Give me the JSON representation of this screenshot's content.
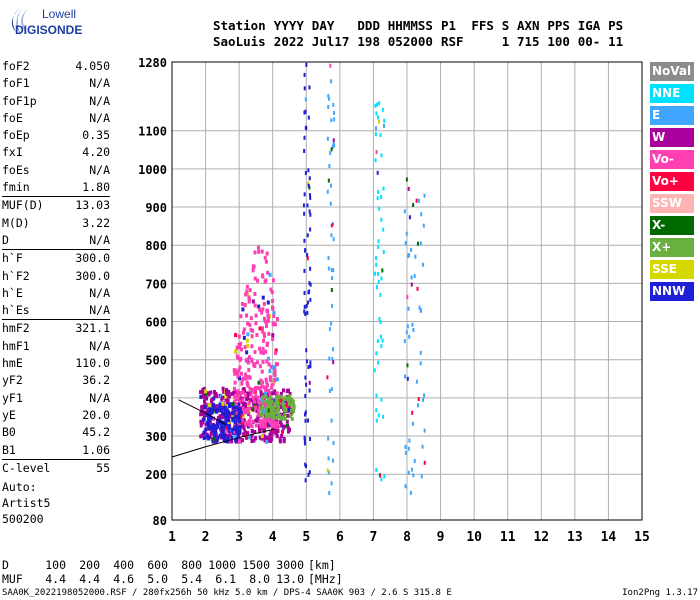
{
  "logo": {
    "line1": "Lowell",
    "line2": "DIGISONDE"
  },
  "header": {
    "row1": [
      "Station",
      "YYYY",
      "DAY",
      "DDD",
      "HHMMSS",
      "P1",
      "FFS",
      "S",
      "AXN",
      "PPS",
      "IGA",
      "PS"
    ],
    "row2": [
      "SaoLuis",
      "2022",
      "Jul17",
      "198",
      "052000",
      "RSF",
      "",
      "1",
      "715",
      "100",
      "00-",
      "11"
    ]
  },
  "params": [
    {
      "name": "foF2",
      "value": "4.050"
    },
    {
      "name": "foF1",
      "value": "N/A"
    },
    {
      "name": "foF1p",
      "value": "N/A"
    },
    {
      "name": "foE",
      "value": "N/A"
    },
    {
      "name": "foEp",
      "value": "0.35"
    },
    {
      "name": "fxI",
      "value": "4.20"
    },
    {
      "name": "foEs",
      "value": "N/A"
    },
    {
      "name": "fmin",
      "value": "1.80"
    },
    {
      "name": "MUF(D)",
      "value": "13.03",
      "sep": true
    },
    {
      "name": "M(D)",
      "value": "3.22"
    },
    {
      "name": "D",
      "value": "N/A"
    },
    {
      "name": "h`F",
      "value": "300.0",
      "sep": true
    },
    {
      "name": "h`F2",
      "value": "300.0"
    },
    {
      "name": "h`E",
      "value": "N/A"
    },
    {
      "name": "h`Es",
      "value": "N/A"
    },
    {
      "name": "hmF2",
      "value": "321.1",
      "sep": true
    },
    {
      "name": "hmF1",
      "value": "N/A"
    },
    {
      "name": "hmE",
      "value": "110.0"
    },
    {
      "name": "yF2",
      "value": "36.2"
    },
    {
      "name": "yF1",
      "value": "N/A"
    },
    {
      "name": "yE",
      "value": "20.0"
    },
    {
      "name": "B0",
      "value": "45.2"
    },
    {
      "name": "B1",
      "value": "1.06"
    },
    {
      "name": "C-level",
      "value": "55",
      "sep": true
    }
  ],
  "auto": {
    "line1": "Auto:",
    "line2": "Artist5",
    "line3": "500200"
  },
  "legend": [
    {
      "label": "NoVal",
      "color": "#8c8c8c"
    },
    {
      "label": "NNE",
      "color": "#00e1ff"
    },
    {
      "label": "E",
      "color": "#3fa7ff"
    },
    {
      "label": "W",
      "color": "#a8009d"
    },
    {
      "label": "Vo-",
      "color": "#ff3fb4"
    },
    {
      "label": "Vo+",
      "color": "#ff0040"
    },
    {
      "label": "SSW",
      "color": "#ffb4b4"
    },
    {
      "label": "X-",
      "color": "#006a00"
    },
    {
      "label": "X+",
      "color": "#6ab040"
    },
    {
      "label": "SSE",
      "color": "#d7d700"
    },
    {
      "label": "NNW",
      "color": "#1f1fd7"
    }
  ],
  "muf_table": {
    "d_label": "D",
    "d_values": [
      "100",
      "200",
      "400",
      "600",
      "800",
      "1000",
      "1500",
      "3000"
    ],
    "d_unit": "[km]",
    "muf_label": "MUF",
    "muf_values": [
      "4.4",
      "4.4",
      "4.6",
      "5.0",
      "5.4",
      "6.1",
      "8.0",
      "13.0"
    ],
    "muf_unit": "[MHz]"
  },
  "footer": {
    "left": "SAA0K_2022198052000.RSF / 280fx256h 50 kHz 5.0 km / DPS-4 SAA0K 903 / 2.6 S 315.8 E",
    "right": "Ion2Png 1.3.17"
  },
  "chart_data": {
    "type": "scatter",
    "x_range": [
      1,
      15
    ],
    "y_range": [
      80,
      1280
    ],
    "x_ticks": [
      1,
      2,
      3,
      4,
      5,
      6,
      7,
      8,
      9,
      10,
      11,
      12,
      13,
      14,
      15
    ],
    "y_ticks": [
      80,
      200,
      300,
      400,
      500,
      600,
      700,
      800,
      900,
      1000,
      1100,
      1280
    ],
    "grid": true,
    "profile_x": [
      1.0,
      2.0,
      3.0,
      3.6,
      4.05
    ],
    "profile_y": [
      245,
      272,
      296,
      309,
      318
    ],
    "echo_clusters": [
      {
        "name": "O/X trace",
        "x": [
          1.8,
          4.5
        ],
        "y": [
          290,
          430
        ],
        "color": "#a8009d",
        "count": 420
      },
      {
        "name": "spread F",
        "x": [
          2.8,
          4.1
        ],
        "y": [
          330,
          860
        ],
        "color": "#ff3fb4",
        "count": 320
      },
      {
        "name": "low trace",
        "x": [
          1.9,
          3.0
        ],
        "y": [
          290,
          390
        ],
        "color": "#1f1fd7",
        "count": 160
      },
      {
        "name": "X trace",
        "x": [
          3.6,
          4.6
        ],
        "y": [
          350,
          410
        ],
        "color": "#6ab040",
        "count": 120
      },
      {
        "name": "line 5",
        "x": [
          4.9,
          5.1
        ],
        "y": [
          150,
          1280
        ],
        "color": "#1f1fd7",
        "count": 70
      },
      {
        "name": "line 5.7",
        "x": [
          5.6,
          5.8
        ],
        "y": [
          150,
          1280
        ],
        "color": "#3fa7ff",
        "count": 50
      },
      {
        "name": "line 7.2",
        "x": [
          7.0,
          7.3
        ],
        "y": [
          150,
          1200
        ],
        "color": "#00e1ff",
        "count": 55
      },
      {
        "name": "line 8",
        "x": [
          7.9,
          8.5
        ],
        "y": [
          150,
          1000
        ],
        "color": "#3fa7ff",
        "count": 60
      }
    ]
  }
}
